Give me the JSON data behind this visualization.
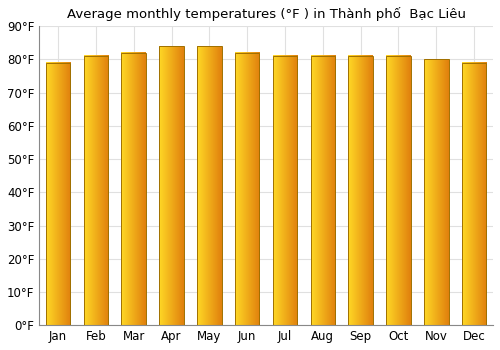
{
  "title": "Average monthly temperatures (°F ) in Thành phố  Bạc Liêu",
  "months": [
    "Jan",
    "Feb",
    "Mar",
    "Apr",
    "May",
    "Jun",
    "Jul",
    "Aug",
    "Sep",
    "Oct",
    "Nov",
    "Dec"
  ],
  "values": [
    79,
    81,
    82,
    84,
    84,
    82,
    81,
    81,
    81,
    81,
    80,
    79
  ],
  "bar_color_main": "#FFA500",
  "bar_color_left": "#FFD700",
  "bar_color_right": "#E08000",
  "bar_edge_color": "#B8860B",
  "background_color": "#ffffff",
  "ylim": [
    0,
    90
  ],
  "yticks": [
    0,
    10,
    20,
    30,
    40,
    50,
    60,
    70,
    80,
    90
  ],
  "ylabel_format": "°F",
  "grid_color": "#e0e0e0",
  "title_fontsize": 9.5,
  "tick_fontsize": 8.5
}
